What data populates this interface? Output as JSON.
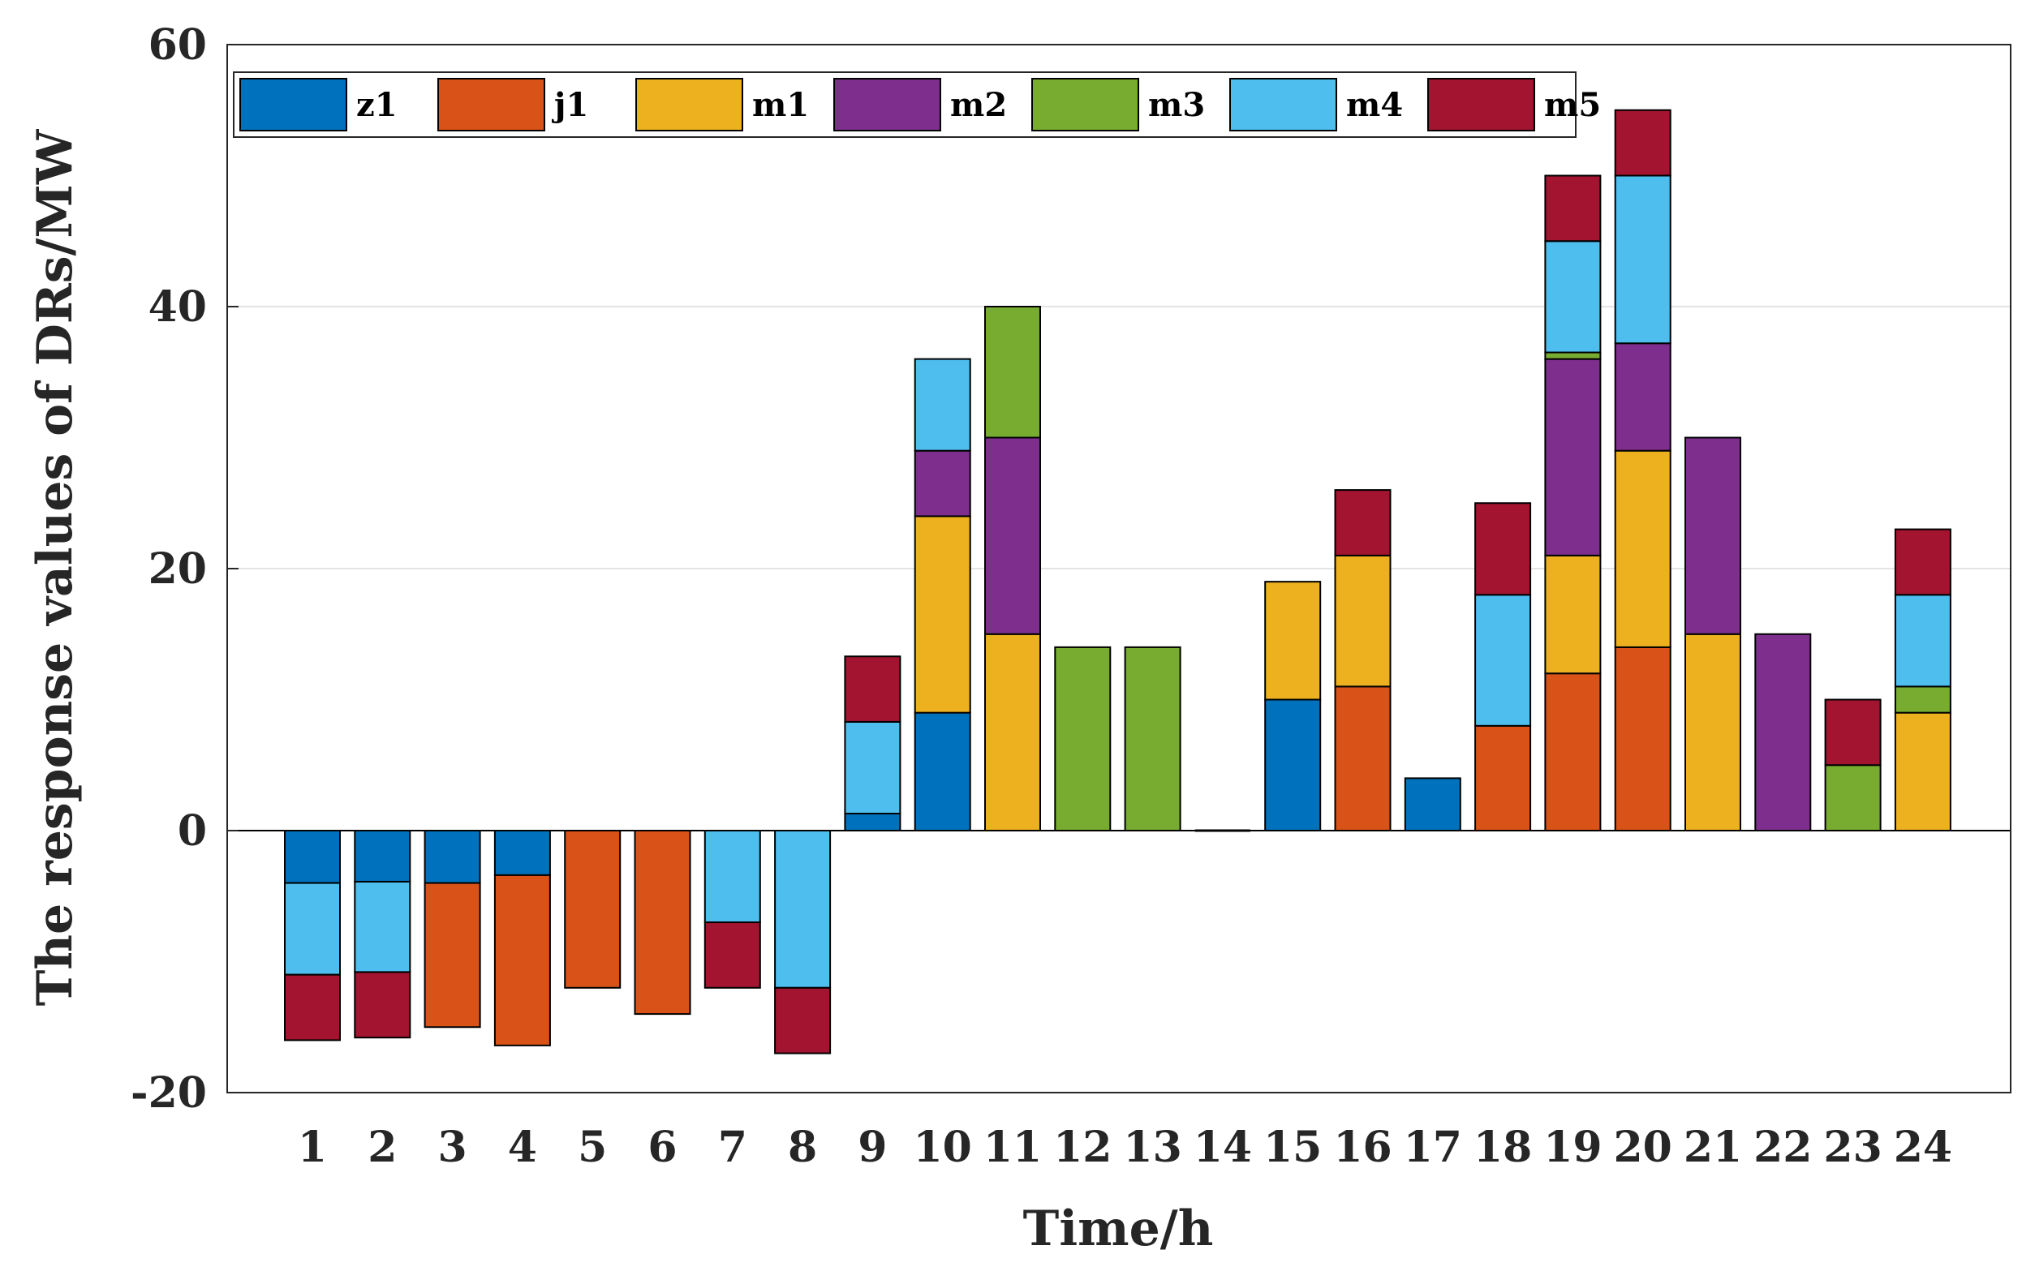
{
  "chart_data": {
    "type": "stacked-bar",
    "title": "",
    "xlabel": "Time/h",
    "ylabel": "The response values of DRs/MW",
    "ylim": [
      -20,
      60
    ],
    "yticks": [
      -20,
      0,
      20,
      40,
      60
    ],
    "grid": true,
    "legend_position": "top-left",
    "categories": [
      "1",
      "2",
      "3",
      "4",
      "5",
      "6",
      "7",
      "8",
      "9",
      "10",
      "11",
      "12",
      "13",
      "14",
      "15",
      "16",
      "17",
      "18",
      "19",
      "20",
      "21",
      "22",
      "23",
      "24"
    ],
    "series": [
      {
        "name": "z1",
        "color": "#0072BD",
        "values": [
          -4,
          -3.9,
          -4,
          -3.4,
          0,
          0,
          0,
          0,
          1.3,
          9,
          0,
          0,
          0,
          0,
          10,
          0,
          4,
          0,
          0,
          0,
          0,
          0,
          0,
          0
        ]
      },
      {
        "name": "j1",
        "color": "#D95319",
        "values": [
          0,
          0,
          -11,
          -13,
          -12,
          -14,
          0,
          0,
          0,
          0,
          0,
          0,
          0,
          0,
          0,
          11,
          0,
          8,
          12,
          14,
          0,
          0,
          0,
          0
        ]
      },
      {
        "name": "m1",
        "color": "#EDB120",
        "values": [
          0,
          0,
          0,
          0,
          0,
          0,
          0,
          0,
          0,
          15,
          15,
          0,
          0,
          0,
          9,
          10,
          0,
          0,
          9,
          15,
          15,
          0,
          0,
          9
        ]
      },
      {
        "name": "m2",
        "color": "#7E2F8E",
        "values": [
          0,
          0,
          0,
          0,
          0,
          0,
          0,
          0,
          0,
          5,
          15,
          0,
          0,
          0,
          0,
          0,
          0,
          0,
          15,
          8.2,
          15,
          15,
          0,
          0
        ]
      },
      {
        "name": "m3",
        "color": "#77AC30",
        "values": [
          0,
          0,
          0,
          0,
          0,
          0,
          0,
          0,
          0,
          0,
          10,
          14,
          14,
          0,
          0,
          0,
          0,
          0,
          0.5,
          0,
          0,
          0,
          5,
          2
        ]
      },
      {
        "name": "m4",
        "color": "#4DBEEE",
        "values": [
          -7,
          -6.9,
          0,
          0,
          0,
          0,
          -7,
          -12,
          7,
          7,
          0,
          0,
          0,
          0,
          0,
          0,
          0,
          10,
          8.5,
          12.8,
          0,
          0,
          0,
          7
        ]
      },
      {
        "name": "m5",
        "color": "#A2142F",
        "values": [
          -5,
          -5,
          0,
          0,
          0,
          0,
          -5,
          -5,
          5,
          0,
          0,
          0,
          0,
          0,
          0,
          5,
          0,
          7,
          5,
          5,
          0,
          0,
          5,
          5
        ]
      }
    ]
  }
}
